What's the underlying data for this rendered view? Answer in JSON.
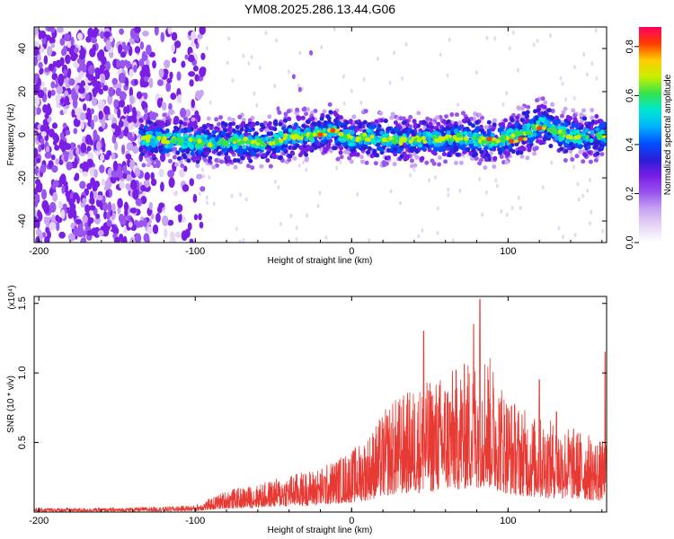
{
  "title": "YM08.2025.286.13.44.G06",
  "colors": {
    "snr_line": "#e83a34",
    "spectrogram_cmap": [
      "#ffffff",
      "#e6d8f5",
      "#c9a6f3",
      "#9a55f0",
      "#7a1ee6",
      "#2a1ed8",
      "#0050ff",
      "#00b4ff",
      "#00e8d0",
      "#36e34a",
      "#c8f000",
      "#ffcc00",
      "#ff3d00",
      "#ff0060"
    ]
  },
  "chart_data": [
    {
      "type": "heatmap",
      "name": "spectrogram",
      "xlabel": "Height of straight line (km)",
      "ylabel": "Frequency (Hz)",
      "xlim": [
        -203,
        163
      ],
      "ylim": [
        -50,
        50
      ],
      "xticks": [
        -200,
        -100,
        0,
        100
      ],
      "xtick_labels": [
        "-200",
        "-100",
        "0",
        "100"
      ],
      "yticks": [
        -40,
        -20,
        0,
        20,
        40
      ],
      "ytick_labels": [
        "-40",
        "-20",
        "0",
        "20",
        "40"
      ],
      "colorbar": {
        "label": "Normalized spectral amplitude",
        "range": [
          0,
          0.88
        ],
        "ticks": [
          0.0,
          0.2,
          0.4,
          0.6,
          0.8
        ],
        "tick_labels": [
          "0.0",
          "0.2",
          "0.4",
          "0.6",
          "0.8"
        ]
      },
      "band_center_hz": [
        [
          -130,
          -2
        ],
        [
          -110,
          -3
        ],
        [
          -90,
          -4
        ],
        [
          -70,
          -3
        ],
        [
          -55,
          -4
        ],
        [
          -40,
          -1
        ],
        [
          -25,
          0
        ],
        [
          -12,
          2
        ],
        [
          0,
          -2
        ],
        [
          10,
          -1
        ],
        [
          30,
          -3
        ],
        [
          50,
          -2
        ],
        [
          70,
          -1
        ],
        [
          85,
          -3
        ],
        [
          95,
          -2
        ],
        [
          105,
          0
        ],
        [
          115,
          2
        ],
        [
          122,
          5
        ],
        [
          135,
          0
        ],
        [
          150,
          -1
        ],
        [
          162,
          0
        ]
      ],
      "band_halfwidth_hz": 10,
      "noise_region_km": [
        -203,
        -100
      ],
      "feature_points": [
        [
          -26,
          38
        ],
        [
          -37,
          27
        ],
        [
          -33,
          21
        ],
        [
          -30,
          12
        ],
        [
          -47,
          12
        ]
      ]
    },
    {
      "type": "line",
      "name": "snr",
      "xlabel": "Height of straight line (km)",
      "ylabel": "SNR (10 * v/v)",
      "y_scale_label": "(x10⁴)",
      "xlim": [
        -203,
        163
      ],
      "ylim": [
        0,
        1.55
      ],
      "xticks": [
        -200,
        -100,
        0,
        100
      ],
      "xtick_labels": [
        "-200",
        "-100",
        "0",
        "100"
      ],
      "yticks": [
        0.5,
        1.0,
        1.5
      ],
      "ytick_labels": [
        "0.5",
        "1.0",
        "1.5"
      ],
      "envelope": [
        [
          -203,
          0.03
        ],
        [
          -150,
          0.03
        ],
        [
          -120,
          0.04
        ],
        [
          -100,
          0.05
        ],
        [
          -90,
          0.1
        ],
        [
          -80,
          0.16
        ],
        [
          -60,
          0.2
        ],
        [
          -40,
          0.27
        ],
        [
          -20,
          0.32
        ],
        [
          0,
          0.45
        ],
        [
          10,
          0.55
        ],
        [
          25,
          0.8
        ],
        [
          40,
          0.9
        ],
        [
          60,
          1.0
        ],
        [
          75,
          1.1
        ],
        [
          85,
          1.2
        ],
        [
          100,
          0.85
        ],
        [
          115,
          0.7
        ],
        [
          130,
          0.65
        ],
        [
          145,
          0.6
        ],
        [
          163,
          0.5
        ]
      ],
      "peaks": [
        [
          82,
          1.53
        ],
        [
          78,
          1.35
        ],
        [
          46,
          1.3
        ],
        [
          120,
          0.95
        ],
        [
          131,
          0.72
        ],
        [
          162,
          1.15
        ]
      ]
    }
  ]
}
